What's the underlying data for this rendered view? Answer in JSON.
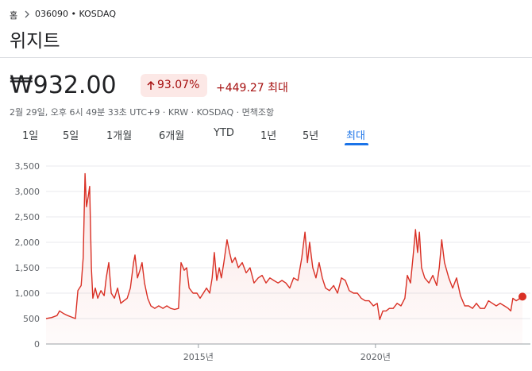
{
  "breadcrumb": {
    "home": "홈",
    "path": "036090 • KOSDAQ"
  },
  "title": "위지트",
  "price": "₩932.00",
  "change_percent": "93.07%",
  "change": "+449.27 최대",
  "info": "2월 29일, 오후 6시 49분 33초 UTC+9 · KRW · KOSDAQ · 면책조항",
  "tabs": [
    "1일",
    "5일",
    "1개월",
    "6개월",
    "YTD",
    "1년",
    "5년",
    "최대"
  ],
  "chart_data": {
    "type": "line",
    "color": "#d93025",
    "grid": true,
    "x": [
      2010.7,
      2010.86,
      2011.01,
      2011.08,
      2011.19,
      2011.31,
      2011.42,
      2011.53,
      2011.6,
      2011.69,
      2011.75,
      2011.8,
      2011.84,
      2011.89,
      2011.93,
      2011.98,
      2012.02,
      2012.09,
      2012.16,
      2012.25,
      2012.34,
      2012.4,
      2012.47,
      2012.54,
      2012.63,
      2012.72,
      2012.81,
      2012.9,
      2012.99,
      2013.08,
      2013.17,
      2013.21,
      2013.28,
      2013.35,
      2013.41,
      2013.48,
      2013.57,
      2013.66,
      2013.77,
      2013.88,
      2014.0,
      2014.11,
      2014.22,
      2014.33,
      2014.44,
      2014.51,
      2014.6,
      2014.67,
      2014.74,
      2014.85,
      2014.96,
      2015.05,
      2015.14,
      2015.23,
      2015.32,
      2015.39,
      2015.45,
      2015.52,
      2015.59,
      2015.65,
      2015.72,
      2015.81,
      2015.88,
      2015.95,
      2016.04,
      2016.13,
      2016.24,
      2016.35,
      2016.46,
      2016.57,
      2016.69,
      2016.8,
      2016.91,
      2017.02,
      2017.13,
      2017.25,
      2017.36,
      2017.47,
      2017.58,
      2017.69,
      2017.81,
      2017.92,
      2018.01,
      2018.08,
      2018.14,
      2018.23,
      2018.32,
      2018.41,
      2018.5,
      2018.59,
      2018.7,
      2018.82,
      2018.93,
      2019.04,
      2019.15,
      2019.26,
      2019.38,
      2019.49,
      2019.6,
      2019.71,
      2019.82,
      2019.94,
      2020.05,
      2020.12,
      2020.21,
      2020.3,
      2020.39,
      2020.5,
      2020.61,
      2020.72,
      2020.83,
      2020.9,
      2020.99,
      2021.06,
      2021.13,
      2021.19,
      2021.24,
      2021.3,
      2021.39,
      2021.51,
      2021.62,
      2021.73,
      2021.8,
      2021.87,
      2021.95,
      2022.07,
      2022.18,
      2022.29,
      2022.4,
      2022.52,
      2022.63,
      2022.74,
      2022.85,
      2022.96,
      2023.08,
      2023.19,
      2023.3,
      2023.41,
      2023.52,
      2023.64,
      2023.75,
      2023.82,
      2023.88,
      2023.97,
      2024.09,
      2024.15
    ],
    "values": [
      500,
      520,
      560,
      650,
      600,
      560,
      530,
      500,
      1050,
      1150,
      1700,
      3350,
      2700,
      2900,
      3100,
      1500,
      900,
      1100,
      900,
      1050,
      950,
      1300,
      1600,
      1000,
      900,
      1100,
      800,
      850,
      900,
      1100,
      1600,
      1750,
      1300,
      1450,
      1600,
      1200,
      900,
      750,
      700,
      750,
      700,
      750,
      700,
      680,
      700,
      1600,
      1450,
      1500,
      1100,
      1000,
      1000,
      900,
      1000,
      1100,
      1000,
      1300,
      1800,
      1250,
      1500,
      1300,
      1600,
      2050,
      1800,
      1600,
      1700,
      1500,
      1600,
      1400,
      1500,
      1200,
      1300,
      1350,
      1200,
      1300,
      1250,
      1200,
      1250,
      1200,
      1100,
      1300,
      1250,
      1700,
      2200,
      1600,
      2000,
      1500,
      1300,
      1600,
      1300,
      1100,
      1050,
      1150,
      1000,
      1300,
      1250,
      1050,
      1000,
      1000,
      900,
      850,
      850,
      750,
      800,
      480,
      650,
      650,
      700,
      700,
      800,
      750,
      900,
      1350,
      1200,
      1700,
      2250,
      1800,
      2200,
      1500,
      1300,
      1200,
      1350,
      1150,
      1500,
      2050,
      1600,
      1300,
      1100,
      1300,
      950,
      750,
      750,
      700,
      800,
      700,
      700,
      850,
      800,
      750,
      800,
      750,
      700,
      650,
      900,
      850,
      900,
      932
    ],
    "xlim": [
      2010.7,
      2024.24
    ],
    "xticks": [
      {
        "value": 2015,
        "label": "2015년"
      },
      {
        "value": 2020,
        "label": "2020년"
      }
    ],
    "ylim": [
      0,
      3500
    ],
    "yticks": [
      0,
      500,
      {
        "value": 1000,
        "label": "1,000"
      },
      {
        "value": 1500,
        "label": "1,500"
      },
      {
        "value": 2000,
        "label": "2,000"
      },
      {
        "value": 2500,
        "label": "2,500"
      },
      {
        "value": 3000,
        "label": "3,000"
      },
      {
        "value": 3500,
        "label": "3,500"
      }
    ]
  }
}
